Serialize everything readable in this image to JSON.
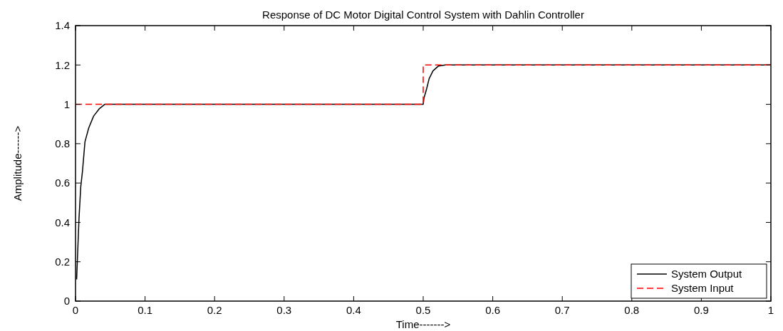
{
  "chart_data": {
    "type": "line",
    "title": "Response of DC Motor Digital Control System with Dahlin Controller",
    "xlabel": "Time------->",
    "ylabel": "Amplitude------>",
    "xlim": [
      0,
      1
    ],
    "ylim": [
      0,
      1.4
    ],
    "xticks": [
      0,
      0.1,
      0.2,
      0.3,
      0.4,
      0.5,
      0.6,
      0.7,
      0.8,
      0.9,
      1
    ],
    "yticks": [
      0,
      0.2,
      0.4,
      0.6,
      0.8,
      1,
      1.2,
      1.4
    ],
    "grid": false,
    "legend": "bottom right",
    "series": [
      {
        "name": "System Output",
        "color": "#000000",
        "line_style": "solid",
        "x": [
          0.0016,
          0.0034,
          0.005,
          0.0075,
          0.01,
          0.0136,
          0.019,
          0.026,
          0.034,
          0.042,
          0.05,
          0.5,
          0.501,
          0.505,
          0.5085,
          0.514,
          0.522,
          0.532,
          0.54,
          1
        ],
        "values": [
          0.11,
          0.275,
          0.42,
          0.58,
          0.66,
          0.81,
          0.88,
          0.94,
          0.977,
          1.0,
          1.0,
          1.0,
          1.03,
          1.08,
          1.13,
          1.17,
          1.195,
          1.2,
          1.2,
          1.2
        ]
      },
      {
        "name": "System Input",
        "color": "#ff0000",
        "line_style": "dashed",
        "x": [
          0,
          0.5,
          0.5,
          1
        ],
        "values": [
          1,
          1,
          1.2,
          1.2
        ]
      }
    ]
  }
}
